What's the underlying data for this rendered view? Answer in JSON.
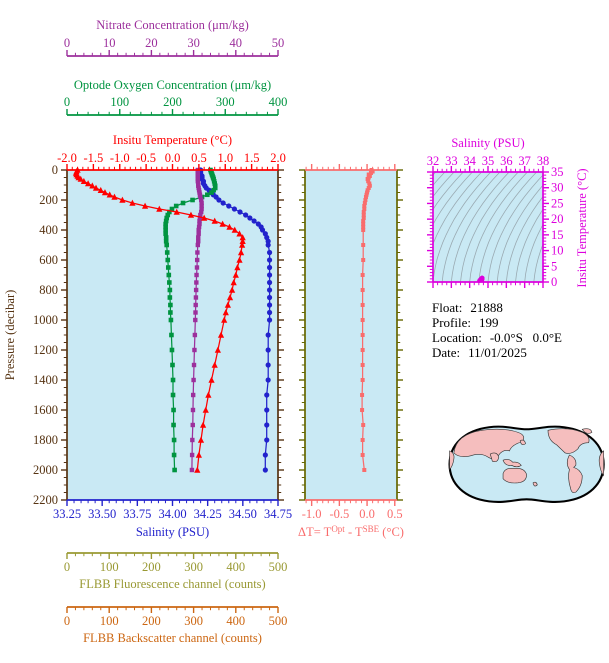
{
  "colors": {
    "panel_bg": "#c9e9f4",
    "temperature": "#ff0000",
    "salinity": "#2222cc",
    "oxygen": "#009440",
    "nitrate": "#9c2f9c",
    "pressure": "#563312",
    "fluorescence": "#999933",
    "backscatter": "#cc6611",
    "delta": "#f96c6c",
    "delta_frame": "#666600",
    "ts": "#dd00dd",
    "isopycnal": "#9aaab2",
    "map_land": "#f5bebe",
    "map_ocean": "#c9e9f4",
    "map_outline": "#000000",
    "info_text": "#000000"
  },
  "info": {
    "rows": [
      {
        "label": "Float:",
        "value": "21888"
      },
      {
        "label": "Profile:",
        "value": "199"
      },
      {
        "label": "Location:",
        "value": "-0.0°S   0.0°E"
      },
      {
        "label": "Date:",
        "value": "11/01/2025"
      }
    ]
  },
  "chart_data": [
    {
      "id": "profile_panel",
      "type": "line",
      "pressure_axis": {
        "label": "Pressure (decibar)",
        "min": 0,
        "max": 2200,
        "major": 200,
        "minor": 50,
        "tick_labels": [
          "0",
          "200",
          "400",
          "600",
          "800",
          "1000",
          "1200",
          "1400",
          "1600",
          "1800",
          "2000",
          "2200"
        ]
      },
      "pressures": [
        0,
        10,
        20,
        30,
        40,
        50,
        60,
        75,
        90,
        105,
        120,
        135,
        150,
        165,
        180,
        200,
        220,
        240,
        260,
        280,
        300,
        320,
        340,
        360,
        380,
        400,
        425,
        450,
        475,
        500,
        550,
        600,
        650,
        700,
        750,
        800,
        850,
        900,
        950,
        1000,
        1100,
        1200,
        1300,
        1400,
        1500,
        1600,
        1700,
        1800,
        1900,
        2000
      ],
      "series": [
        {
          "key": "nitrate",
          "label": "Nitrate Concentration (μm/kg)",
          "axis_min": 0,
          "axis_max": 50,
          "major": 10,
          "minor": 2,
          "tick_labels": [
            "0",
            "10",
            "20",
            "30",
            "40",
            "50"
          ],
          "marker": "square",
          "values": [
            31.0,
            31.0,
            31.0,
            31.0,
            31.0,
            31.0,
            31.0,
            31.0,
            31.1,
            31.1,
            31.2,
            31.3,
            31.4,
            31.5,
            31.6,
            31.8,
            31.9,
            31.9,
            31.9,
            31.8,
            31.6,
            31.5,
            31.4,
            31.4,
            31.3,
            31.2,
            31.2,
            31.1,
            31.1,
            31.0,
            30.9,
            30.85,
            30.8,
            30.7,
            30.65,
            30.6,
            30.55,
            30.5,
            30.45,
            30.4,
            30.3,
            30.2,
            30.1,
            30.0,
            29.9,
            29.85,
            29.8,
            29.7,
            29.65,
            29.6
          ]
        },
        {
          "key": "oxygen",
          "label": "Optode Oxygen Concentration (μm/kg)",
          "axis_min": 0,
          "axis_max": 400,
          "major": 100,
          "minor": 20,
          "tick_labels": [
            "0",
            "100",
            "200",
            "300",
            "400"
          ],
          "marker": "square",
          "values": [
            272,
            273,
            274,
            275,
            276,
            277,
            278,
            279,
            280,
            281,
            281,
            278,
            274,
            266,
            256,
            238,
            220,
            207,
            199,
            194,
            191,
            189,
            188,
            187,
            187,
            187,
            187,
            188,
            188,
            189,
            190,
            191,
            192,
            193,
            194,
            195,
            195,
            196,
            196,
            197,
            198,
            199,
            200,
            201,
            201,
            202,
            202,
            203,
            203,
            204
          ]
        },
        {
          "key": "temperature",
          "label": "Insitu Temperature (°C)",
          "axis_min": -2,
          "axis_max": 2,
          "major": 0.5,
          "minor": 0.1,
          "tick_labels": [
            "-2.0",
            "-1.5",
            "-1.0",
            "-0.5",
            "0.0",
            "0.5",
            "1.0",
            "1.5",
            "2.0"
          ],
          "marker": "triangle",
          "values": [
            -1.8,
            -1.82,
            -1.83,
            -1.82,
            -1.8,
            -1.78,
            -1.74,
            -1.68,
            -1.6,
            -1.52,
            -1.45,
            -1.36,
            -1.28,
            -1.19,
            -1.1,
            -0.95,
            -0.76,
            -0.52,
            -0.25,
            0.08,
            0.35,
            0.6,
            0.8,
            0.95,
            1.08,
            1.18,
            1.27,
            1.33,
            1.33,
            1.32,
            1.3,
            1.27,
            1.23,
            1.2,
            1.16,
            1.13,
            1.09,
            1.05,
            1.01,
            0.98,
            0.92,
            0.86,
            0.8,
            0.74,
            0.68,
            0.63,
            0.58,
            0.54,
            0.5,
            0.47
          ]
        },
        {
          "key": "salinity",
          "label": "Salinity (PSU)",
          "axis_min": 33.25,
          "axis_max": 34.75,
          "major": 0.25,
          "minor": 0.05,
          "tick_labels": [
            "33.25",
            "33.50",
            "33.75",
            "34.00",
            "34.25",
            "34.50",
            "34.75"
          ],
          "marker": "circle",
          "values": [
            34.2,
            34.2,
            34.2,
            34.2,
            34.21,
            34.21,
            34.21,
            34.22,
            34.22,
            34.23,
            34.24,
            34.26,
            34.27,
            34.29,
            34.31,
            34.33,
            34.36,
            34.4,
            34.44,
            34.48,
            34.52,
            34.55,
            34.58,
            34.61,
            34.63,
            34.64,
            34.66,
            34.67,
            34.68,
            34.68,
            34.69,
            34.69,
            34.69,
            34.69,
            34.69,
            34.69,
            34.69,
            34.69,
            34.69,
            34.69,
            34.68,
            34.68,
            34.68,
            34.68,
            34.67,
            34.67,
            34.67,
            34.67,
            34.66,
            34.66
          ]
        }
      ],
      "extra_axes": [
        {
          "key": "fluorescence",
          "label": "FLBB Fluorescence channel (counts)",
          "axis_min": 0,
          "axis_max": 500,
          "major": 100,
          "minor": 20,
          "tick_labels": [
            "0",
            "100",
            "200",
            "300",
            "400",
            "500"
          ]
        },
        {
          "key": "backscatter",
          "label": "FLBB Backscatter channel (counts)",
          "axis_min": 0,
          "axis_max": 500,
          "major": 100,
          "minor": 20,
          "tick_labels": [
            "0",
            "100",
            "200",
            "300",
            "400",
            "500"
          ]
        }
      ]
    },
    {
      "id": "delta_panel",
      "type": "line",
      "xlabel_parts": [
        "ΔT= T",
        "Opt",
        " - T",
        "SBE",
        " (°C)"
      ],
      "axis_min": -1.12,
      "axis_max": 0.54,
      "major": 0.5,
      "minor": 0.1,
      "tick_labels": [
        "-1.0",
        "-0.5",
        "0.0",
        "0.5"
      ],
      "marker": "square",
      "pressures": [
        0,
        10,
        20,
        30,
        40,
        50,
        60,
        75,
        90,
        105,
        120,
        135,
        150,
        165,
        180,
        200,
        220,
        240,
        260,
        280,
        300,
        320,
        340,
        360,
        380,
        400,
        500,
        600,
        700,
        800,
        900,
        1000,
        1100,
        1200,
        1300,
        1400,
        1500,
        1600,
        1700,
        1800,
        1900,
        2000
      ],
      "values": [
        0.08,
        0.1,
        0.07,
        0.03,
        0.05,
        0.03,
        0.01,
        0.02,
        0.04,
        0.05,
        0.03,
        0.01,
        0.0,
        -0.01,
        -0.02,
        -0.03,
        -0.04,
        -0.05,
        -0.05,
        -0.06,
        -0.06,
        -0.06,
        -0.07,
        -0.07,
        -0.07,
        -0.07,
        -0.07,
        -0.07,
        -0.08,
        -0.08,
        -0.08,
        -0.08,
        -0.08,
        -0.08,
        -0.08,
        -0.08,
        -0.09,
        -0.09,
        -0.07,
        -0.08,
        -0.08,
        -0.05
      ]
    },
    {
      "id": "ts_panel",
      "type": "scatter",
      "x_axis": {
        "label": "Salinity (PSU)",
        "min": 32,
        "max": 38,
        "major": 1,
        "minor": 0.25,
        "tick_labels": [
          "32",
          "33",
          "34",
          "35",
          "36",
          "37",
          "38"
        ]
      },
      "y_axis": {
        "label": "Insitu Temperature (°C)",
        "min": 0,
        "max": 35,
        "major": 5,
        "minor": 1,
        "tick_labels": [
          "0",
          "5",
          "10",
          "15",
          "20",
          "25",
          "30",
          "35"
        ]
      },
      "isopycnals": {
        "s0_start": 28.5,
        "s0_end": 38,
        "s0_step": 0.5
      }
    }
  ]
}
